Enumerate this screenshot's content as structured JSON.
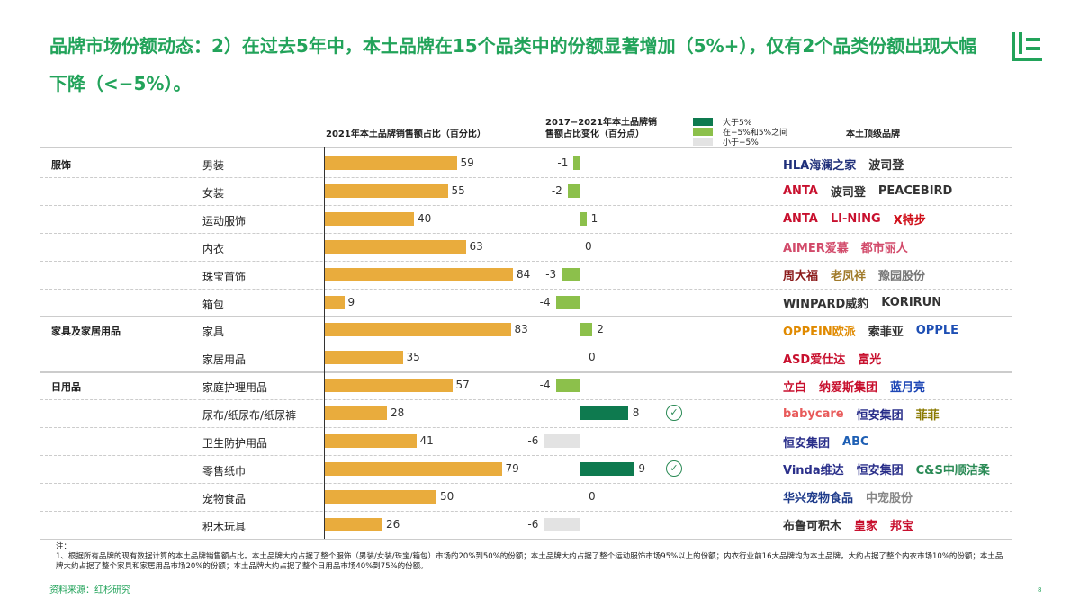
{
  "title": "品牌市场份额动态：2）在过去5年中，本土品牌在15个品类中的份额显著增加（5%+），仅有2个品类份额出现大幅下降（<−5%）。",
  "headers": {
    "share": "2021年本土品牌销售额占比（百分比）",
    "change": "2017−2021年本土品牌销售额占比变化（百分点）",
    "brands": "本土顶级品牌"
  },
  "legend": [
    {
      "label": "大于5%",
      "color": "#0e7a4f"
    },
    {
      "label": "在−5%和5%之间",
      "color": "#8cc04b"
    },
    {
      "label": "小于−5%",
      "color": "#e3e3e3"
    }
  ],
  "colors": {
    "share_bar": "#e9ac3d",
    "title": "#22a35a"
  },
  "chart_data": {
    "type": "bar",
    "groups": [
      "服饰",
      "家具及家居用品",
      "日用品"
    ],
    "rows": [
      {
        "group": "服饰",
        "category": "男装",
        "share": 59,
        "change": -1,
        "brands": [
          "HLA海澜之家",
          "波司登"
        ]
      },
      {
        "group": "",
        "category": "女装",
        "share": 55,
        "change": -2,
        "brands": [
          "ANTA",
          "波司登",
          "PEACEBIRD"
        ]
      },
      {
        "group": "",
        "category": "运动服饰",
        "share": 40,
        "change": 1,
        "brands": [
          "ANTA",
          "LI-NING",
          "X特步"
        ]
      },
      {
        "group": "",
        "category": "内衣",
        "share": 63,
        "change": 0,
        "brands": [
          "AIMER爱慕",
          "都市丽人"
        ]
      },
      {
        "group": "",
        "category": "珠宝首饰",
        "share": 84,
        "change": -3,
        "brands": [
          "周大福",
          "老凤祥",
          "豫园股份"
        ]
      },
      {
        "group": "",
        "category": "箱包",
        "share": 9,
        "change": -4,
        "brands": [
          "WINPARD威豹",
          "KORIRUN"
        ]
      },
      {
        "group": "家具及家居用品",
        "category": "家具",
        "share": 83,
        "change": 2,
        "brands": [
          "OPPEIN欧派",
          "索菲亚",
          "OPPLE"
        ]
      },
      {
        "group": "",
        "category": "家居用品",
        "share": 35,
        "change": 0,
        "brands": [
          "ASD爱仕达",
          "富光"
        ]
      },
      {
        "group": "日用品",
        "category": "家庭护理用品",
        "share": 57,
        "change": -4,
        "brands": [
          "立白",
          "纳爱斯集团",
          "蓝月亮"
        ]
      },
      {
        "group": "",
        "category": "尿布/纸尿布/纸尿裤",
        "share": 28,
        "change": 8,
        "check": true,
        "brands": [
          "babycare",
          "恒安集团",
          "菲菲"
        ]
      },
      {
        "group": "",
        "category": "卫生防护用品",
        "share": 41,
        "change": -6,
        "brands": [
          "恒安集团",
          "ABC"
        ]
      },
      {
        "group": "",
        "category": "零售纸巾",
        "share": 79,
        "change": 9,
        "check": true,
        "brands": [
          "Vinda维达",
          "恒安集团",
          "C&S中顺洁柔"
        ]
      },
      {
        "group": "",
        "category": "宠物食品",
        "share": 50,
        "change": 0,
        "brands": [
          "华兴宠物食品",
          "中宠股份"
        ]
      },
      {
        "group": "",
        "category": "积木玩具",
        "share": 26,
        "change": -6,
        "brands": [
          "布鲁可积木",
          "皇家",
          "邦宝"
        ]
      }
    ]
  },
  "brand_colors": {
    "HLA海澜之家": "#1f2f7a",
    "ANTA": "#c8102e",
    "LI-NING": "#c8102e",
    "X特步": "#d0101a",
    "AIMER爱慕": "#d24a6a",
    "都市丽人": "#d24a6a",
    "周大福": "#8b1a1a",
    "老凤祥": "#a07a2a",
    "豫园股份": "#777",
    "OPPEIN欧派": "#e08a00",
    "OPPLE": "#1e4fb4",
    "ASD爱仕达": "#c8102e",
    "富光": "#c8102e",
    "立白": "#c8102e",
    "纳爱斯集团": "#c8102e",
    "蓝月亮": "#1d46b5",
    "babycare": "#e85a5a",
    "恒安集团": "#2a2f8a",
    "菲菲": "#8a7a00",
    "ABC": "#1e5fb4",
    "Vinda维达": "#2a2f8a",
    "C&S中顺洁柔": "#2a8a55",
    "华兴宠物食品": "#1d3a8a",
    "中宠股份": "#888",
    "布鲁可积木": "#333",
    "皇家": "#c8102e",
    "邦宝": "#c8102e"
  },
  "note_label": "注：",
  "note": "1、根据所有品牌的现有数据计算的本土品牌销售额占比。本土品牌大约占据了整个服饰（男装/女装/珠宝/箱包）市场的20%到50%的份额；本土品牌大约占据了整个运动服饰市场95%以上的份额；内衣行业前16大品牌均为本土品牌，大约占据了整个内衣市场10%的份额；本土品牌大约占据了整个家具和家居用品市场20%的份额；本土品牌大约占据了整个日用品市场40%到75%的份额。",
  "source": "资料来源：红杉研究",
  "page_number": "8"
}
